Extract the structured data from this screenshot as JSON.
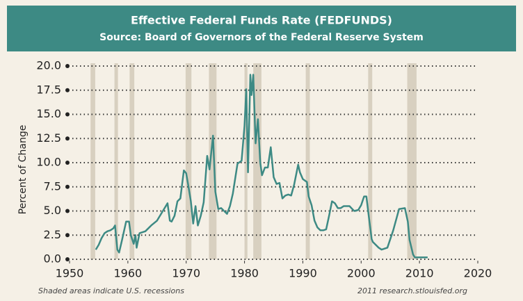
{
  "chart_data": {
    "type": "line",
    "title": "Effective Federal Funds Rate (FEDFUNDS)",
    "subtitle": "Source: Board of Governors of the Federal Reserve System",
    "y_label": "Percent of Change",
    "footnote": "Shaded areas indicate U.S. recessions",
    "credit": "2011 research.stlouisfed.org",
    "xlim": [
      1950,
      2020
    ],
    "xticks": [
      1950,
      1960,
      1970,
      1980,
      1990,
      2000,
      2010,
      2020
    ],
    "ylim": [
      0,
      20
    ],
    "yticks": [
      {
        "value": 0,
        "label": "0.0"
      },
      2.5,
      {
        "value": 5,
        "label": "5.0"
      },
      7.5,
      {
        "value": 10,
        "label": "10.0"
      },
      12.5,
      {
        "value": 15,
        "label": "15.0"
      },
      17.5,
      {
        "value": 20,
        "label": "20.0"
      }
    ],
    "grid": true,
    "recession_color": "#d8d0c0",
    "recessions": [
      [
        1953.6,
        1954.4
      ],
      [
        1957.7,
        1958.3
      ],
      [
        1960.3,
        1961.1
      ],
      [
        1969.9,
        1970.9
      ],
      [
        1973.9,
        1975.2
      ],
      [
        1980.0,
        1980.5
      ],
      [
        1981.5,
        1982.9
      ],
      [
        1990.5,
        1991.2
      ],
      [
        2001.2,
        2001.9
      ],
      [
        2007.9,
        2009.5
      ]
    ],
    "series": [
      {
        "name": "FEDFUNDS",
        "color": "#3d8a84",
        "x": [
          1954.5,
          1955,
          1955.5,
          1956,
          1956.5,
          1957,
          1957.5,
          1957.8,
          1958.2,
          1958.5,
          1959,
          1959.7,
          1960.2,
          1960.5,
          1961,
          1961.3,
          1961.5,
          1962,
          1963,
          1964,
          1965,
          1966,
          1966.8,
          1967.2,
          1967.5,
          1968,
          1968.5,
          1969,
          1969.6,
          1970,
          1970.4,
          1970.8,
          1971.2,
          1971.6,
          1972,
          1972.5,
          1973,
          1973.6,
          1974,
          1974.6,
          1975,
          1975.5,
          1976,
          1976.5,
          1977,
          1977.5,
          1978,
          1978.8,
          1979.5,
          1980,
          1980.3,
          1980.6,
          1981,
          1981.2,
          1981.5,
          1981.9,
          1982.3,
          1982.7,
          1983,
          1983.5,
          1984,
          1984.5,
          1985,
          1985.5,
          1986,
          1986.5,
          1987,
          1987.5,
          1988,
          1988.5,
          1989.2,
          1989.5,
          1990,
          1990.7,
          1991,
          1991.5,
          1992,
          1992.5,
          1993,
          1993.5,
          1994,
          1994.5,
          1995,
          1995.5,
          1996,
          1996.5,
          1997,
          1998,
          1998.8,
          1999.5,
          2000,
          2000.5,
          2000.9,
          2001.3,
          2001.8,
          2002,
          2003,
          2003.5,
          2004.5,
          2005.5,
          2006.5,
          2007.5,
          2008,
          2008.3,
          2008.9,
          2009.2,
          2011.4
        ],
        "values": [
          1.0,
          1.5,
          2.2,
          2.7,
          2.9,
          3.0,
          3.2,
          3.5,
          1.0,
          0.7,
          2.0,
          3.9,
          3.9,
          2.5,
          1.6,
          2.5,
          1.2,
          2.7,
          2.9,
          3.5,
          4.0,
          5.0,
          5.8,
          4.0,
          3.9,
          4.5,
          6.0,
          6.3,
          9.2,
          8.9,
          7.5,
          6.0,
          3.7,
          5.5,
          3.5,
          4.5,
          5.9,
          10.7,
          9.3,
          12.8,
          7.0,
          5.2,
          5.3,
          5.0,
          4.7,
          5.5,
          6.8,
          9.9,
          10.2,
          13.8,
          17.6,
          9.0,
          19.1,
          17.0,
          19.1,
          12.0,
          14.5,
          10.0,
          8.7,
          9.5,
          9.5,
          11.6,
          8.5,
          7.8,
          7.9,
          6.3,
          6.6,
          6.7,
          6.6,
          7.7,
          9.8,
          9.0,
          8.3,
          8.0,
          6.5,
          5.6,
          4.0,
          3.3,
          3.0,
          3.0,
          3.1,
          4.5,
          6.0,
          5.8,
          5.3,
          5.3,
          5.5,
          5.5,
          5.0,
          5.1,
          5.6,
          6.5,
          6.5,
          4.5,
          2.1,
          1.8,
          1.2,
          1.0,
          1.2,
          3.0,
          5.2,
          5.3,
          3.9,
          2.0,
          0.5,
          0.2,
          0.2
        ]
      }
    ]
  }
}
